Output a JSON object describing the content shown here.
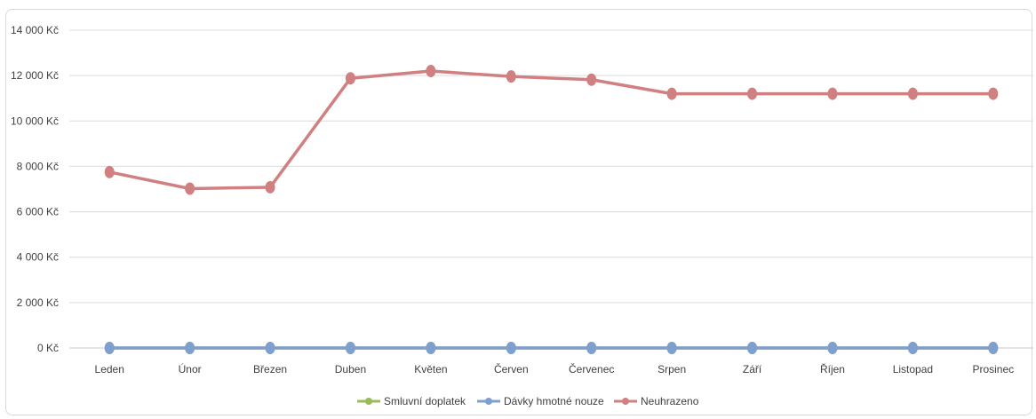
{
  "chart_data": {
    "type": "line",
    "title": "",
    "xlabel": "",
    "ylabel": "",
    "categories": [
      "Leden",
      "Únor",
      "Březen",
      "Duben",
      "Květen",
      "Červen",
      "Červenec",
      "Srpen",
      "Září",
      "Říjen",
      "Listopad",
      "Prosinec"
    ],
    "ylim": [
      0,
      14000
    ],
    "yticks": [
      0,
      2000,
      4000,
      6000,
      8000,
      10000,
      12000,
      14000
    ],
    "ytick_labels": [
      "0 Kč",
      "2 000 Kč",
      "4 000 Kč",
      "6 000 Kč",
      "8 000 Kč",
      "10 000 Kč",
      "12 000 Kč",
      "14 000 Kč"
    ],
    "grid": true,
    "legend_position": "bottom",
    "series": [
      {
        "name": "Smluvní doplatek",
        "color": "#9bbb59",
        "values": [
          0,
          0,
          0,
          0,
          0,
          0,
          0,
          0,
          0,
          0,
          0,
          0
        ]
      },
      {
        "name": "Dávky hmotné nouze",
        "color": "#7f9fcf",
        "values": [
          0,
          0,
          0,
          0,
          0,
          0,
          0,
          0,
          0,
          0,
          0,
          0
        ]
      },
      {
        "name": "Neuhrazeno",
        "color": "#d08080",
        "values": [
          7750,
          7020,
          7080,
          11880,
          12200,
          11960,
          11820,
          11200,
          11200,
          11200,
          11200,
          11200
        ]
      }
    ]
  }
}
